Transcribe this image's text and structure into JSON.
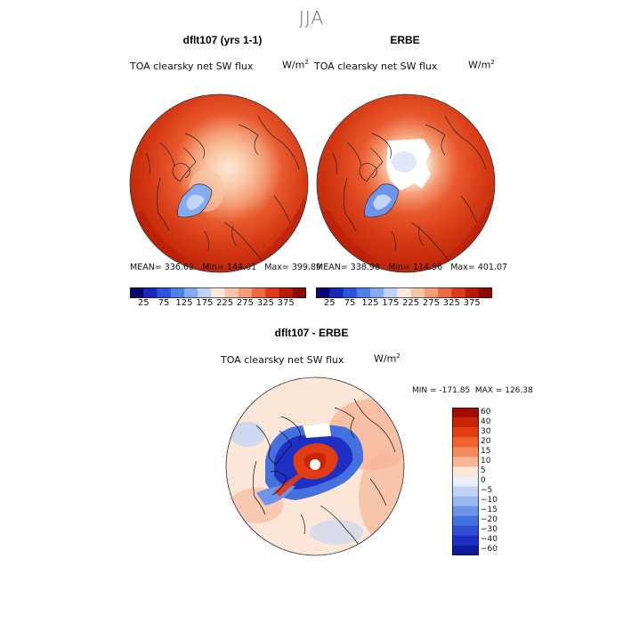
{
  "figure": {
    "season": "JJA",
    "panels": [
      {
        "title": "dflt107 (yrs 1-1)",
        "field": "TOA clearsky net SW flux",
        "units_base": "W/m",
        "units_exp": "2",
        "stats": "MEAN= 336.62   Min= 144.01   Max= 399.89"
      },
      {
        "title": "ERBE",
        "field": "TOA clearsky net SW flux",
        "units_base": "W/m",
        "units_exp": "2",
        "stats": "MEAN= 338.98   Min= 114.56   Max= 401.07"
      }
    ],
    "diff": {
      "title": "dflt107 - ERBE",
      "field": "TOA clearsky net SW flux",
      "units_base": "W/m",
      "units_exp": "2",
      "stats": "MIN = -171.85  MAX = 126.38"
    },
    "abs_colorbar": {
      "colors": [
        "#08066e",
        "#1a27b8",
        "#2c52de",
        "#4f7fe8",
        "#85aaf0",
        "#bfd4f6",
        "#fbeadc",
        "#f8c7a5",
        "#f59e76",
        "#ee6b44",
        "#dd3a1a",
        "#b91c06",
        "#8a0a00"
      ],
      "ticks": [
        "25",
        "75",
        "125",
        "175",
        "225",
        "275",
        "325",
        "375"
      ]
    },
    "diff_colorbar": {
      "colors": [
        "#a00d00",
        "#c82506",
        "#e23c12",
        "#f0622e",
        "#f38a5c",
        "#f6b597",
        "#fce6d8",
        "#e8eefa",
        "#c2d4f5",
        "#98b6ef",
        "#6e93e8",
        "#4570df",
        "#2f4ed6",
        "#1e2fc4",
        "#0e1aa0"
      ],
      "ticks": [
        "60",
        "40",
        "30",
        "20",
        "15",
        "10",
        "5",
        "0",
        "−5",
        "−10",
        "−15",
        "−20",
        "−30",
        "−40",
        "−60"
      ]
    }
  }
}
